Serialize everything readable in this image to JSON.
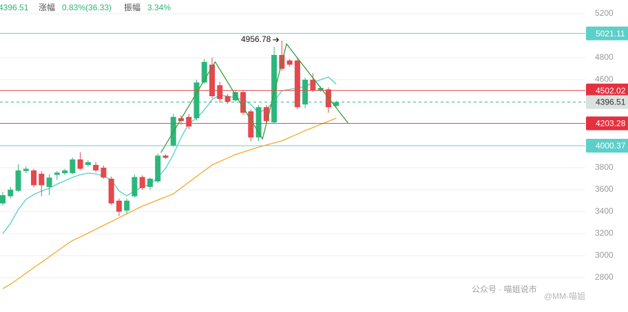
{
  "header": {
    "price": "4396.51",
    "change_label": "涨幅",
    "change": "0.83%(36.33)",
    "amplitude_label": "振幅",
    "amplitude": "3.34%"
  },
  "watermark": {
    "account": "公众号 · 喵姐说市",
    "handle": "@MM-喵姐"
  },
  "chart_data": {
    "type": "candlestick",
    "ylim": [
      2487.5,
      5325
    ],
    "yticks": [
      2800,
      3000,
      3200,
      3400,
      3600,
      3800,
      4600,
      4800,
      5200
    ],
    "grid": true,
    "up_color": "#2db67c",
    "down_color": "#e5484d",
    "candles": [
      [
        3475,
        3580,
        3455,
        3550
      ],
      [
        3540,
        3625,
        3520,
        3600
      ],
      [
        3590,
        3830,
        3580,
        3775
      ],
      [
        3770,
        3810,
        3750,
        3790
      ],
      [
        3775,
        3790,
        3620,
        3640
      ],
      [
        3745,
        3770,
        3540,
        3640
      ],
      [
        3625,
        3740,
        3550,
        3710
      ],
      [
        3735,
        3770,
        3690,
        3755
      ],
      [
        3750,
        3790,
        3735,
        3775
      ],
      [
        3750,
        3890,
        3740,
        3875
      ],
      [
        3875,
        3940,
        3780,
        3790
      ],
      [
        3825,
        3870,
        3810,
        3850
      ],
      [
        3825,
        3850,
        3760,
        3775
      ],
      [
        3800,
        3820,
        3700,
        3710
      ],
      [
        3700,
        3720,
        3460,
        3475
      ],
      [
        3500,
        3520,
        3360,
        3400
      ],
      [
        3410,
        3520,
        3380,
        3500
      ],
      [
        3540,
        3740,
        3530,
        3715
      ],
      [
        3715,
        3730,
        3600,
        3615
      ],
      [
        3625,
        3710,
        3600,
        3700
      ],
      [
        3675,
        3930,
        3660,
        3910
      ],
      [
        3910,
        3920,
        3880,
        3890
      ],
      [
        4000,
        4290,
        3990,
        4262
      ],
      [
        4250,
        4275,
        4190,
        4225
      ],
      [
        4262,
        4290,
        4150,
        4175
      ],
      [
        4250,
        4600,
        4230,
        4575
      ],
      [
        4575,
        4790,
        4560,
        4762
      ],
      [
        4737,
        4800,
        4430,
        4450
      ],
      [
        4550,
        4580,
        4390,
        4425
      ],
      [
        4450,
        4470,
        4380,
        4400
      ],
      [
        4412,
        4500,
        4400,
        4487
      ],
      [
        4487,
        4500,
        4280,
        4300
      ],
      [
        4312,
        4330,
        4040,
        4075
      ],
      [
        4075,
        4370,
        4040,
        4350
      ],
      [
        4350,
        4370,
        4210,
        4225
      ],
      [
        4212,
        4900,
        4200,
        4825
      ],
      [
        4825,
        4956.78,
        4680,
        4700
      ],
      [
        4775,
        4790,
        4720,
        4737
      ],
      [
        4775,
        4800,
        4330,
        4350
      ],
      [
        4375,
        4620,
        4340,
        4600
      ],
      [
        4600,
        4660,
        4490,
        4500
      ],
      [
        4500,
        4540,
        4490,
        4525
      ],
      [
        4512,
        4530,
        4300,
        4350
      ],
      [
        4362,
        4410,
        4350,
        4396.51
      ]
    ],
    "series": [
      {
        "color": "#4fd1c5",
        "values": [
          3200,
          3294,
          3419,
          3512,
          3556,
          3588,
          3612,
          3650,
          3681,
          3712,
          3737,
          3750,
          3744,
          3725,
          3688,
          3588,
          3544,
          3588,
          3625,
          3650,
          3712,
          3794,
          3919,
          4075,
          4200,
          4250,
          4325,
          4419,
          4462,
          4450,
          4437,
          4419,
          4375,
          4294,
          4337,
          4400,
          4500,
          4512,
          4525,
          4537,
          4575,
          4600,
          4625,
          4562
        ]
      },
      {
        "color": "#f0a828",
        "values": [
          2700,
          2740,
          2790,
          2840,
          2890,
          2940,
          2990,
          3040,
          3090,
          3137,
          3170,
          3205,
          3240,
          3275,
          3310,
          3345,
          3380,
          3415,
          3450,
          3478,
          3506,
          3534,
          3562,
          3615,
          3668,
          3720,
          3772,
          3825,
          3856,
          3888,
          3919,
          3942,
          3965,
          3987,
          4006,
          4025,
          4044,
          4075,
          4106,
          4137,
          4165,
          4195,
          4222,
          4250
        ]
      }
    ],
    "levels": [
      {
        "value": 5021.11,
        "color": "#5ccfc8",
        "tag_color": "#5ccfc8",
        "dashed": false
      },
      {
        "value": 4502.02,
        "color": "#e5484d",
        "tag_color": "#e5303f",
        "dashed": false
      },
      {
        "value": 4396.51,
        "color": "#2db67c",
        "tag_color": "#d9e2df",
        "dashed": true
      },
      {
        "value": 4203.28,
        "color": "#e5484d",
        "tag_color": "#e5303f",
        "dashed": false
      },
      {
        "value": 4000.37,
        "color": "#5ccfc8",
        "tag_color": "#5ccfc8",
        "dashed": false
      }
    ],
    "trendline": {
      "color": "#3a9a3a",
      "x": [
        20.4,
        27.4,
        33.5,
        36.6,
        44.6
      ],
      "y": [
        3937,
        4762,
        4062,
        4925,
        4200
      ]
    },
    "annotation": {
      "text": 4956.78,
      "candle": 36
    }
  }
}
